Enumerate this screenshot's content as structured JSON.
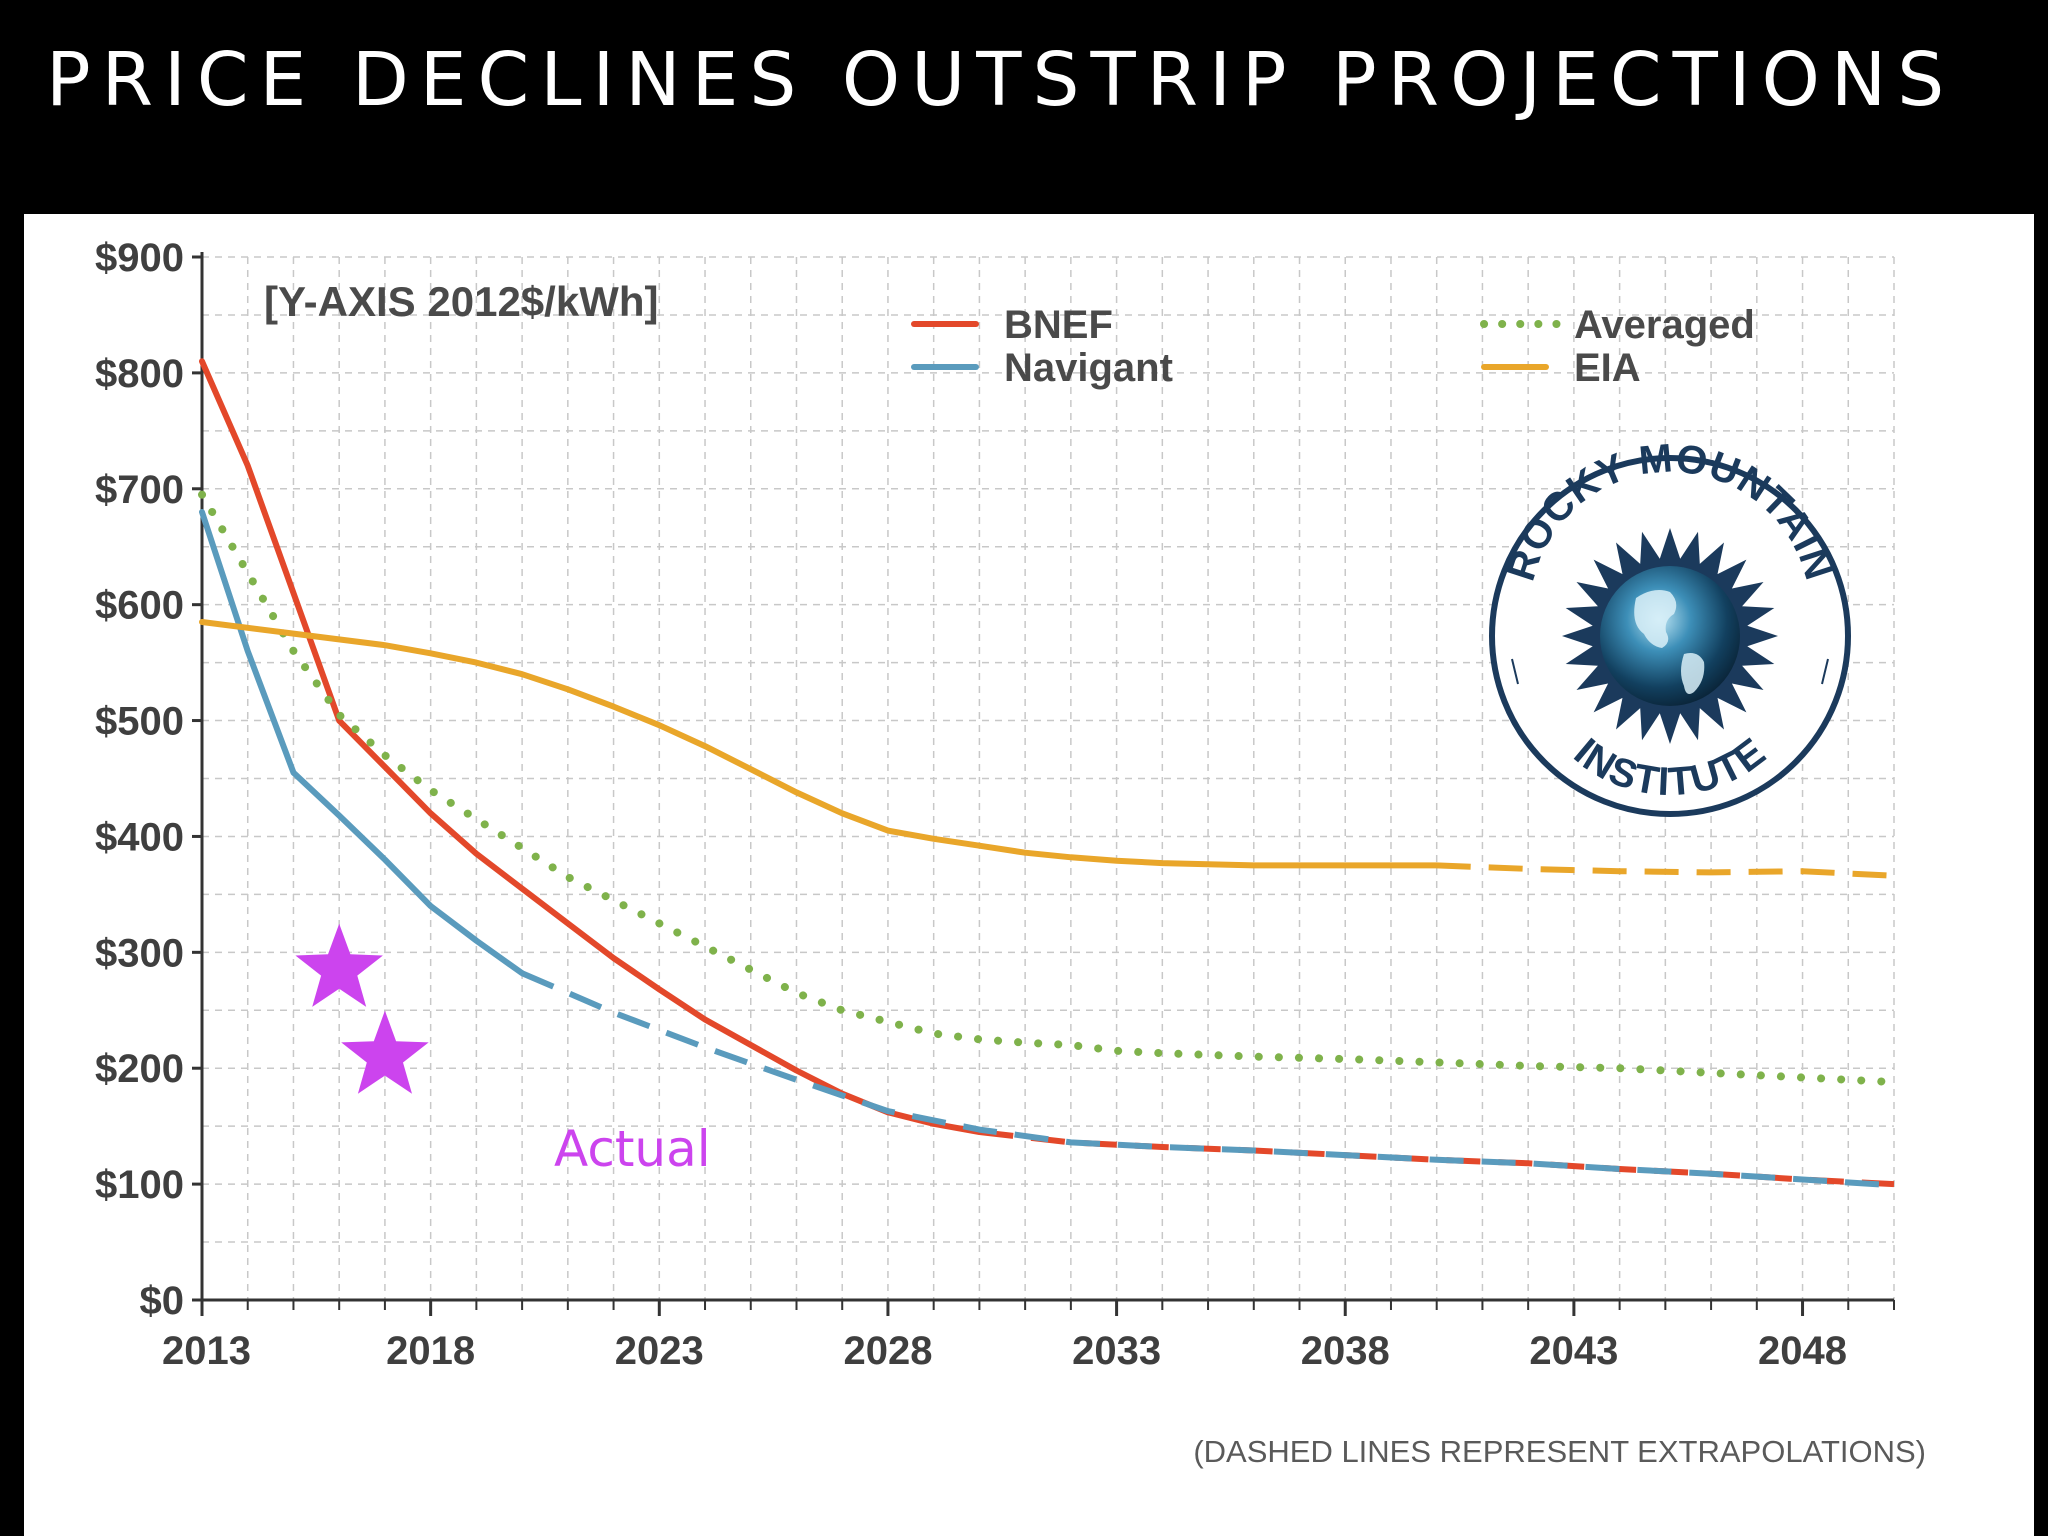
{
  "title": "PRICE DECLINES OUTSTRIP PROJECTIONS",
  "colors": {
    "bnef": "#e3482a",
    "navigant": "#5a9bbd",
    "averaged": "#7fb24b",
    "eia": "#e9a62a",
    "star": "#cc44ee",
    "grid": "#c8c8c8",
    "axis": "#333333",
    "logo_navy": "#1b3a5c"
  },
  "chart_data": {
    "type": "line",
    "yaxis_title": "[Y-AXIS 2012$/kWh]",
    "xlim": [
      2013,
      2050
    ],
    "ylim": [
      0,
      900
    ],
    "x_ticks": [
      2013,
      2018,
      2023,
      2028,
      2033,
      2038,
      2043,
      2048
    ],
    "x_tick_labels": [
      "2013",
      "2018",
      "2023",
      "2028",
      "2033",
      "2038",
      "2043",
      "2048"
    ],
    "y_ticks": [
      0,
      100,
      200,
      300,
      400,
      500,
      600,
      700,
      800,
      900
    ],
    "y_tick_labels": [
      "$0",
      "$100",
      "$200",
      "$300",
      "$400",
      "$500",
      "$600",
      "$700",
      "$800",
      "$900"
    ],
    "series": [
      {
        "key": "bnef",
        "name": "BNEF",
        "style": "solid",
        "x": [
          2013,
          2014,
          2015,
          2016,
          2017,
          2018,
          2019,
          2020,
          2021,
          2022,
          2023,
          2024,
          2025,
          2026,
          2027,
          2028,
          2029,
          2030
        ],
        "y": [
          810,
          720,
          610,
          500,
          460,
          420,
          385,
          355,
          325,
          295,
          268,
          242,
          220,
          198,
          178,
          162,
          152,
          145
        ],
        "extrapolation": {
          "x": [
            2030,
            2032,
            2034,
            2036,
            2038,
            2040,
            2042,
            2044,
            2046,
            2048,
            2050
          ],
          "y": [
            145,
            136,
            132,
            129,
            125,
            121,
            118,
            113,
            109,
            104,
            100
          ]
        }
      },
      {
        "key": "navigant",
        "name": "Navigant",
        "style": "solid",
        "x": [
          2013,
          2014,
          2015,
          2016,
          2017,
          2018,
          2019,
          2020
        ],
        "y": [
          680,
          560,
          455,
          418,
          380,
          340,
          310,
          282
        ],
        "extrapolation": {
          "x": [
            2020,
            2022,
            2024,
            2026,
            2028,
            2030,
            2032,
            2034,
            2036,
            2038,
            2040,
            2042,
            2044,
            2046,
            2048,
            2050
          ],
          "y": [
            282,
            248,
            218,
            190,
            163,
            147,
            136,
            132,
            129,
            125,
            121,
            118,
            113,
            109,
            104,
            99
          ]
        }
      },
      {
        "key": "averaged",
        "name": "Averaged",
        "style": "dotted",
        "x": [
          2013,
          2015,
          2016,
          2017,
          2018,
          2019,
          2020,
          2021,
          2022,
          2023,
          2024,
          2025,
          2026,
          2027,
          2028,
          2029,
          2030,
          2031,
          2032,
          2033,
          2034,
          2036,
          2038,
          2040,
          2042,
          2044,
          2046,
          2048,
          2050
        ],
        "y": [
          695,
          560,
          505,
          470,
          440,
          415,
          390,
          365,
          345,
          325,
          305,
          285,
          265,
          250,
          240,
          230,
          225,
          222,
          220,
          215,
          213,
          210,
          208,
          205,
          202,
          200,
          196,
          192,
          188
        ]
      },
      {
        "key": "eia",
        "name": "EIA",
        "style": "solid",
        "x": [
          2013,
          2015,
          2017,
          2018,
          2019,
          2020,
          2021,
          2022,
          2023,
          2024,
          2025,
          2026,
          2027,
          2028,
          2029,
          2030,
          2031,
          2032,
          2033,
          2034,
          2035,
          2036,
          2038,
          2040
        ],
        "y": [
          585,
          575,
          565,
          558,
          550,
          540,
          527,
          512,
          496,
          478,
          458,
          438,
          420,
          405,
          398,
          392,
          386,
          382,
          379,
          377,
          376,
          375,
          375,
          375
        ],
        "extrapolation": {
          "x": [
            2040,
            2042,
            2044,
            2046,
            2048,
            2050
          ],
          "y": [
            375,
            372,
            370,
            369,
            370,
            366
          ]
        }
      }
    ],
    "actual_points": [
      {
        "x": 2016,
        "y": 285
      },
      {
        "x": 2017,
        "y": 210
      }
    ],
    "annotation": "Actual",
    "footnote": "(DASHED LINES REPRESENT EXTRAPOLATIONS)"
  },
  "legend": [
    {
      "key": "bnef",
      "label": "BNEF",
      "style": "solid"
    },
    {
      "key": "navigant",
      "label": "Navigant",
      "style": "solid"
    },
    {
      "key": "averaged",
      "label": "Averaged",
      "style": "dotted"
    },
    {
      "key": "eia",
      "label": "EIA",
      "style": "solid"
    }
  ],
  "logo": {
    "top_text": "ROCKY MOUNTAIN",
    "bottom_text": "INSTITUTE",
    "icon": "globe-sun-icon"
  }
}
